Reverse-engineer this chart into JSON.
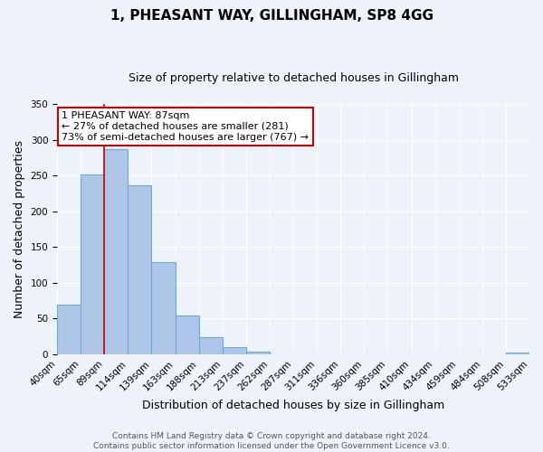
{
  "title": "1, PHEASANT WAY, GILLINGHAM, SP8 4GG",
  "subtitle": "Size of property relative to detached houses in Gillingham",
  "bar_values": [
    69,
    251,
    287,
    236,
    129,
    54,
    24,
    10,
    4,
    0,
    0,
    0,
    0,
    0,
    0,
    0,
    0,
    0,
    0,
    2
  ],
  "x_labels": [
    "40sqm",
    "65sqm",
    "89sqm",
    "114sqm",
    "139sqm",
    "163sqm",
    "188sqm",
    "213sqm",
    "237sqm",
    "262sqm",
    "287sqm",
    "311sqm",
    "336sqm",
    "360sqm",
    "385sqm",
    "410sqm",
    "434sqm",
    "459sqm",
    "484sqm",
    "508sqm",
    "533sqm"
  ],
  "bar_color": "#aec6e8",
  "bar_edge_color": "#6aaad4",
  "property_line_color": "#cc0000",
  "ylabel": "Number of detached properties",
  "xlabel": "Distribution of detached houses by size in Gillingham",
  "ylim": [
    0,
    350
  ],
  "yticks": [
    0,
    50,
    100,
    150,
    200,
    250,
    300,
    350
  ],
  "annotation_title": "1 PHEASANT WAY: 87sqm",
  "annotation_line1": "← 27% of detached houses are smaller (281)",
  "annotation_line2": "73% of semi-detached houses are larger (767) →",
  "annotation_box_color": "#ffffff",
  "annotation_box_edge": "#cc0000",
  "footer_line1": "Contains HM Land Registry data © Crown copyright and database right 2024.",
  "footer_line2": "Contains public sector information licensed under the Open Government Licence v3.0.",
  "background_color": "#eef2fb",
  "grid_color": "#ffffff",
  "title_fontsize": 11,
  "subtitle_fontsize": 9,
  "axis_label_fontsize": 9,
  "tick_fontsize": 7.5,
  "footer_fontsize": 6.5,
  "annotation_fontsize": 8
}
